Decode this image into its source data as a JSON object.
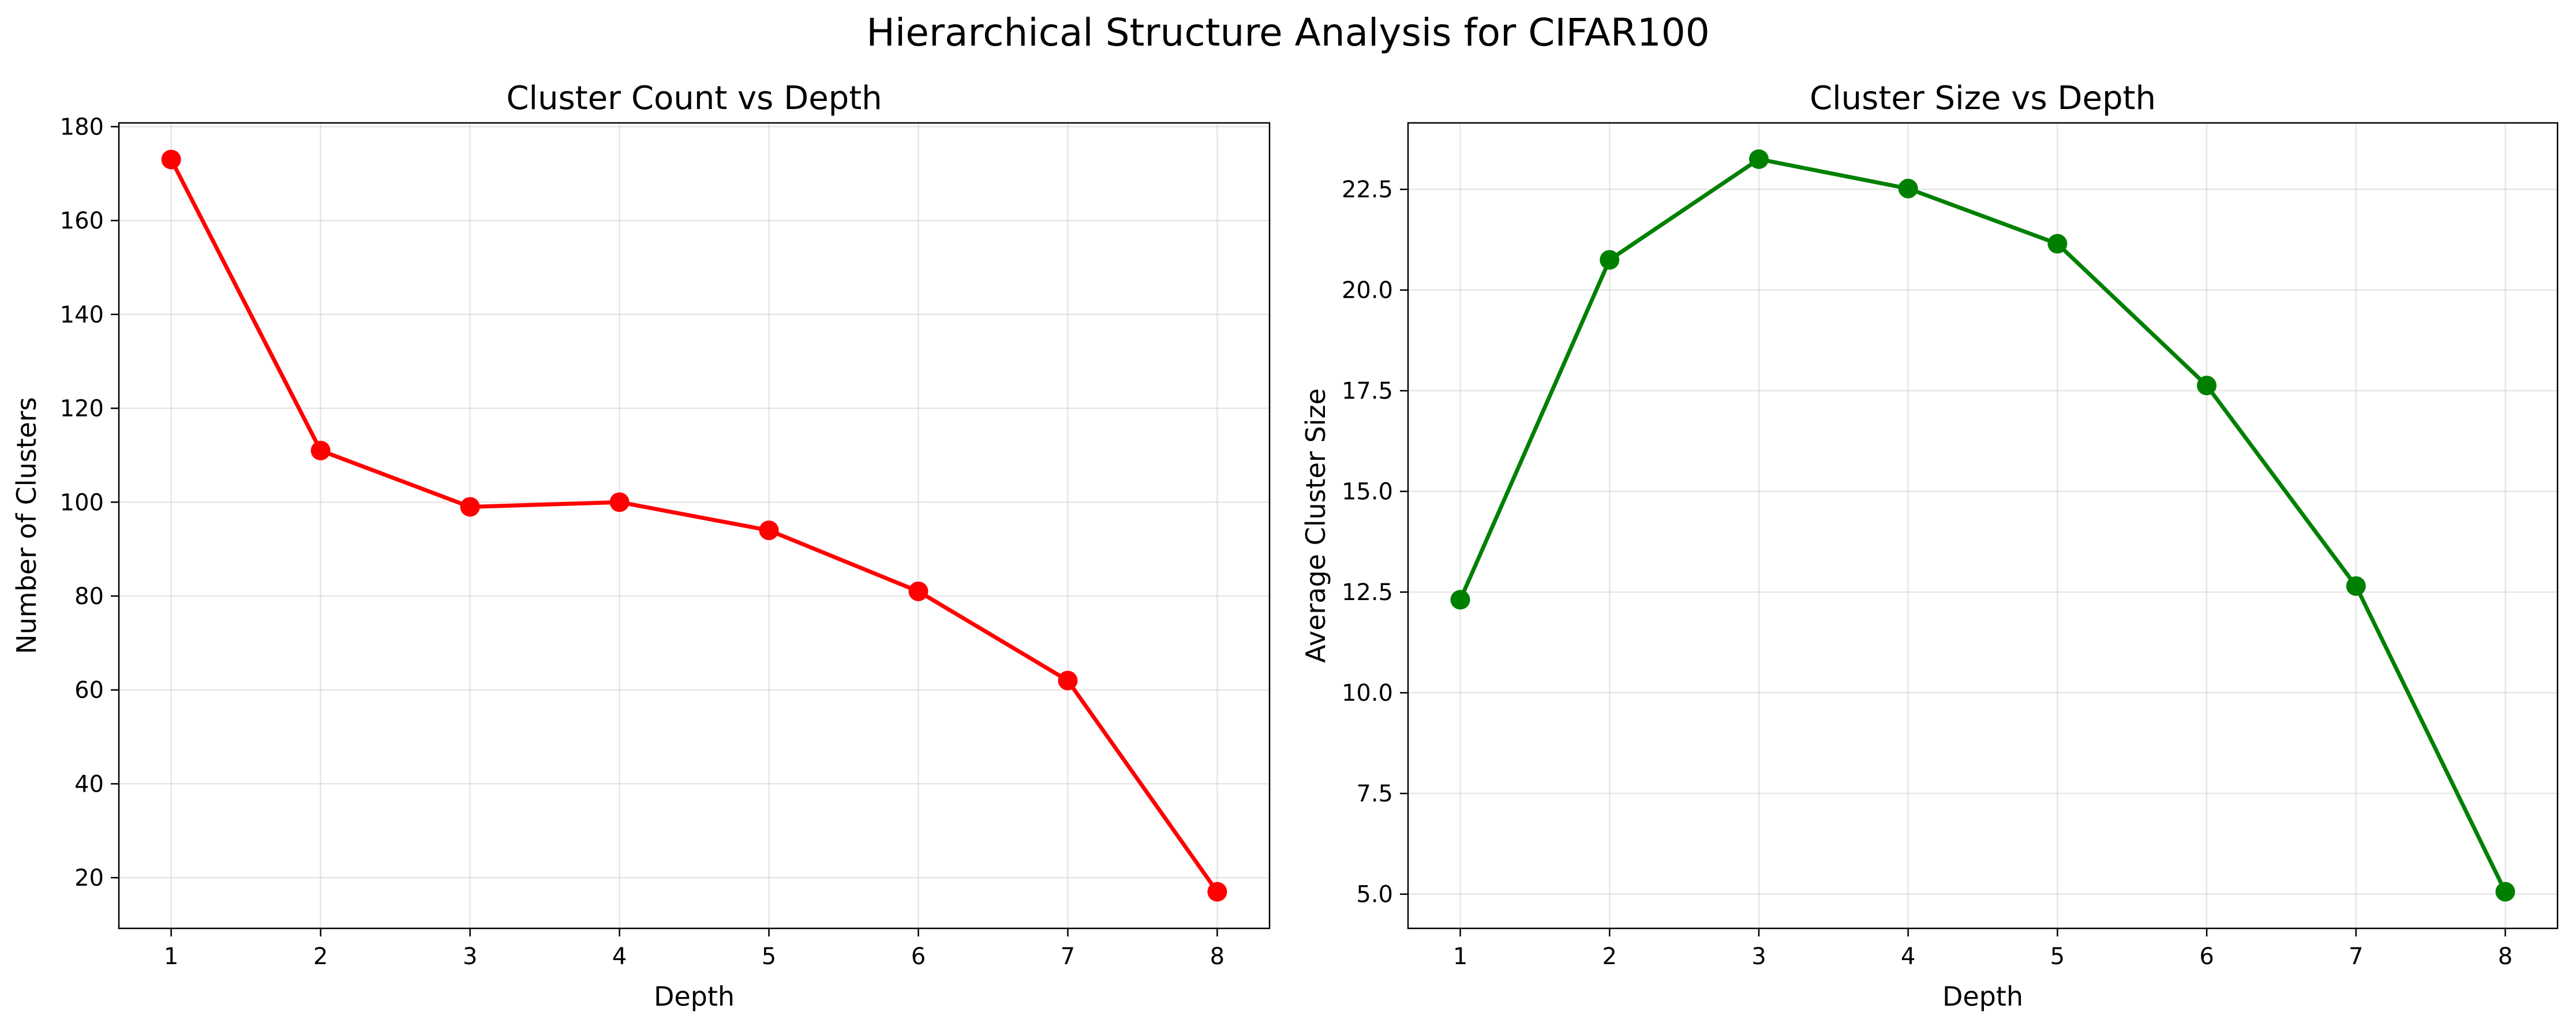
{
  "figure": {
    "title": "Hierarchical Structure Analysis for CIFAR100"
  },
  "chart_data": [
    {
      "type": "line",
      "title": "Cluster Count vs Depth",
      "xlabel": "Depth",
      "ylabel": "Number of Clusters",
      "x": [
        1,
        2,
        3,
        4,
        5,
        6,
        7,
        8
      ],
      "series": [
        {
          "values": [
            173,
            111,
            99,
            100,
            94,
            81,
            62,
            17
          ],
          "color": "#ff0000"
        }
      ],
      "xticks": [
        1,
        2,
        3,
        4,
        5,
        6,
        7,
        8
      ],
      "yticks": [
        20,
        40,
        60,
        80,
        100,
        120,
        140,
        160,
        180
      ],
      "ytick_labels": [
        "20",
        "40",
        "60",
        "80",
        "100",
        "120",
        "140",
        "160",
        "180"
      ],
      "xlim": [
        0.65,
        8.35
      ],
      "ylim": [
        9.2,
        180.8
      ],
      "grid": true,
      "marker": "circle"
    },
    {
      "type": "line",
      "title": "Cluster Size vs Depth",
      "xlabel": "Depth",
      "ylabel": "Average Cluster Size",
      "x": [
        1,
        2,
        3,
        4,
        5,
        6,
        7,
        8
      ],
      "series": [
        {
          "values": [
            12.31,
            20.75,
            23.25,
            22.52,
            21.15,
            17.63,
            12.65,
            5.06
          ],
          "color": "#008000"
        }
      ],
      "xticks": [
        1,
        2,
        3,
        4,
        5,
        6,
        7,
        8
      ],
      "yticks": [
        5.0,
        7.5,
        10.0,
        12.5,
        15.0,
        17.5,
        20.0,
        22.5
      ],
      "ytick_labels": [
        "5.0",
        "7.5",
        "10.0",
        "12.5",
        "15.0",
        "17.5",
        "20.0",
        "22.5"
      ],
      "xlim": [
        0.65,
        8.35
      ],
      "ylim": [
        4.15,
        24.15
      ],
      "grid": true,
      "marker": "circle"
    }
  ]
}
